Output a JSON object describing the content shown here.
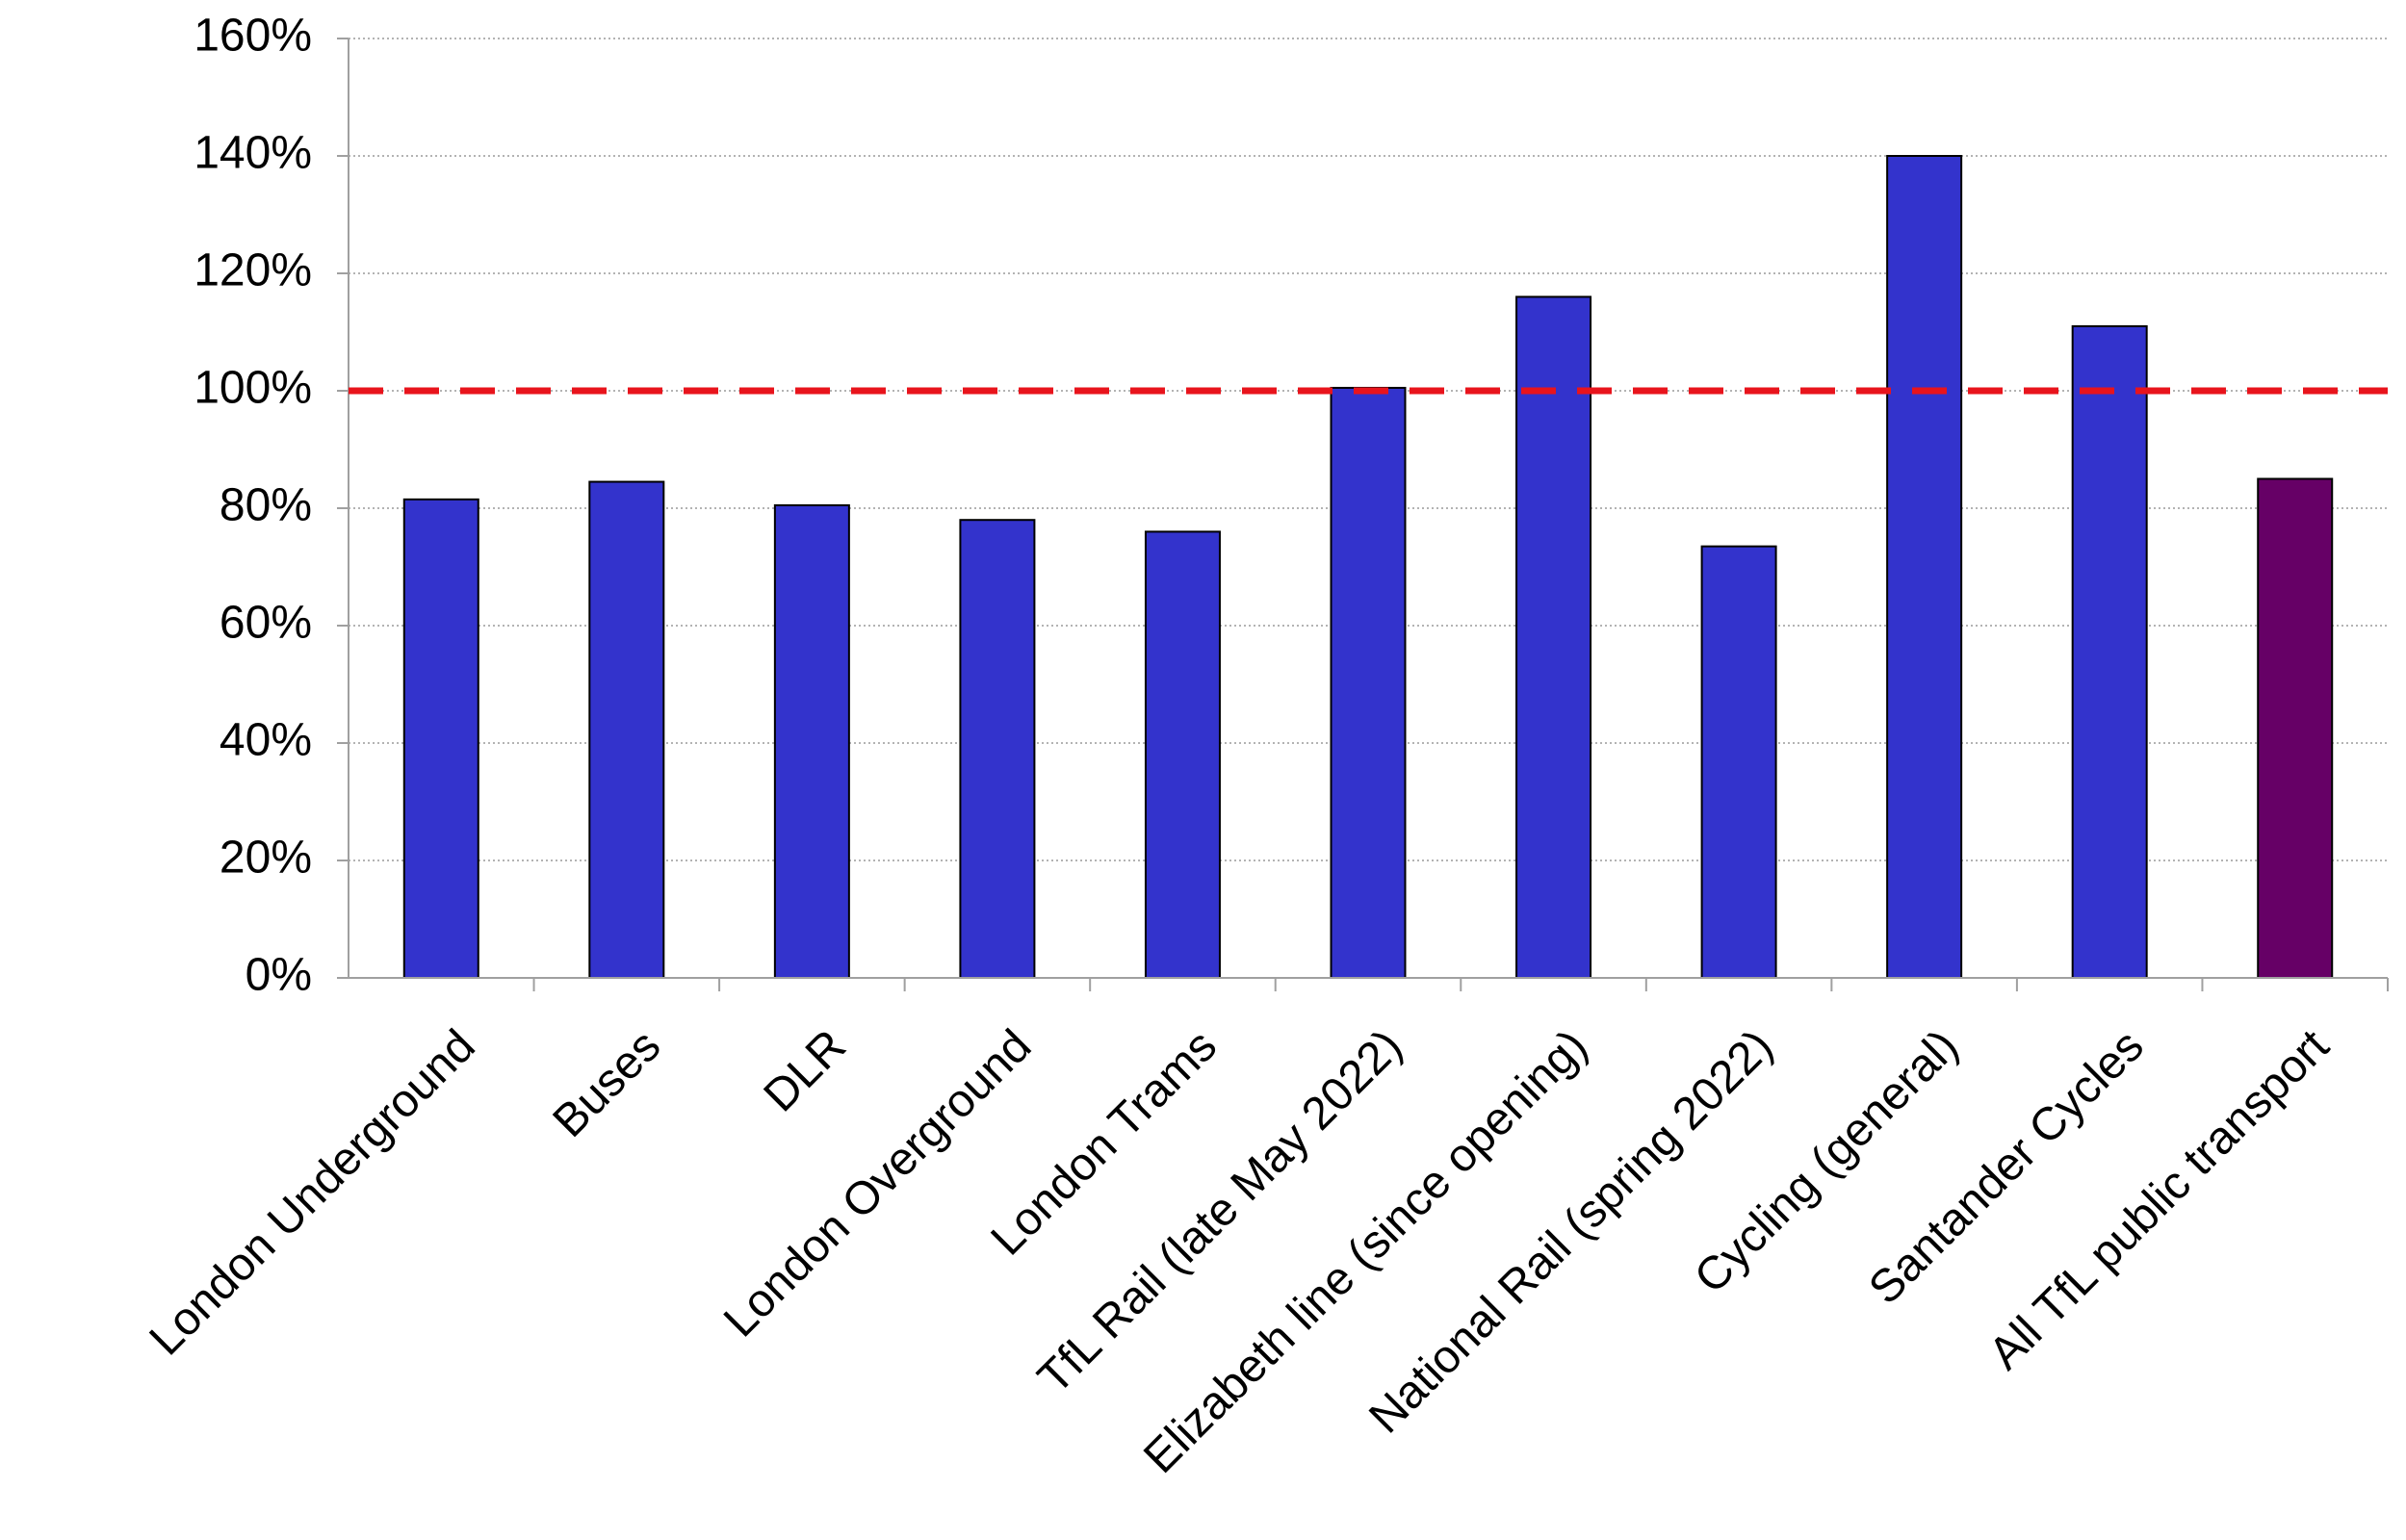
{
  "chart_data": {
    "type": "bar",
    "title": "",
    "xlabel": "",
    "ylabel": "",
    "ylim": [
      0,
      160
    ],
    "yticks": [
      0,
      20,
      40,
      60,
      80,
      100,
      120,
      140,
      160
    ],
    "ytick_labels": [
      "0%",
      "20%",
      "40%",
      "60%",
      "80%",
      "100%",
      "120%",
      "140%",
      "160%"
    ],
    "grid": true,
    "grid_style": "dotted",
    "categories": [
      "London Underground",
      "Buses",
      "DLR",
      "London Overground",
      "London Trams",
      "TfL Rail (late May 2022)",
      "Elizabeth line (since opening)",
      "National Rail (spring 2022)",
      "Cycling (general)",
      "Santander Cycles",
      "All TfL public transport"
    ],
    "values": [
      81.5,
      84.5,
      80.5,
      78,
      76,
      100.5,
      116,
      73.5,
      140,
      111,
      85
    ],
    "bar_colors": [
      "#3333cc",
      "#3333cc",
      "#3333cc",
      "#3333cc",
      "#3333cc",
      "#3333cc",
      "#3333cc",
      "#3333cc",
      "#3333cc",
      "#3333cc",
      "#660066"
    ],
    "reference_line": {
      "value": 100,
      "color": "#e8141c",
      "style": "dashed"
    },
    "legend": "none"
  }
}
